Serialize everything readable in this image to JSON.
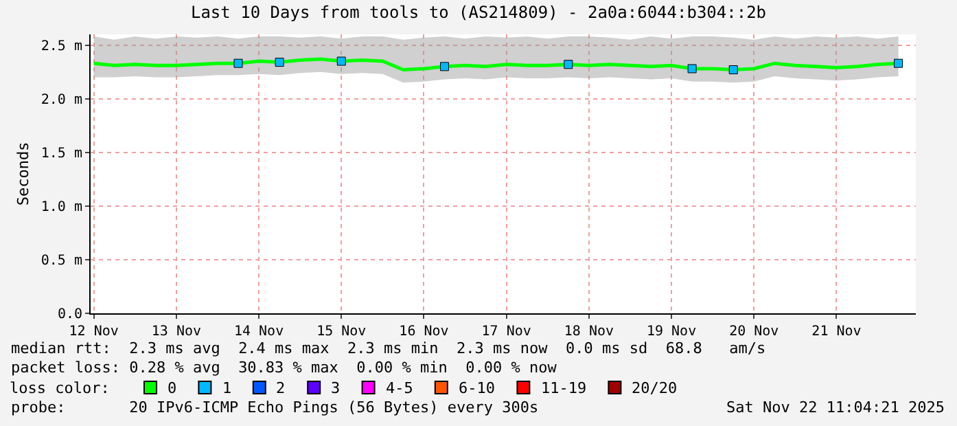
{
  "chart_data": {
    "type": "line",
    "title": "Last 10 Days from tools to (AS214809) - 2a0a:6044:b304::2b",
    "ylabel": "Seconds",
    "legend_title": "loss color:",
    "x": [
      "2025-11-12T12:00",
      "2025-11-12T18:00",
      "2025-11-13T00:00",
      "2025-11-13T06:00",
      "2025-11-13T12:00",
      "2025-11-13T18:00",
      "2025-11-14T00:00",
      "2025-11-14T06:00",
      "2025-11-14T12:00",
      "2025-11-14T18:00",
      "2025-11-15T00:00",
      "2025-11-15T06:00",
      "2025-11-15T12:00",
      "2025-11-15T18:00",
      "2025-11-16T00:00",
      "2025-11-16T06:00",
      "2025-11-16T12:00",
      "2025-11-16T18:00",
      "2025-11-17T00:00",
      "2025-11-17T06:00",
      "2025-11-17T12:00",
      "2025-11-17T18:00",
      "2025-11-18T00:00",
      "2025-11-18T06:00",
      "2025-11-18T12:00",
      "2025-11-18T18:00",
      "2025-11-19T00:00",
      "2025-11-19T06:00",
      "2025-11-19T12:00",
      "2025-11-19T18:00",
      "2025-11-20T00:00",
      "2025-11-20T06:00",
      "2025-11-20T12:00",
      "2025-11-20T18:00",
      "2025-11-21T00:00",
      "2025-11-21T06:00",
      "2025-11-21T12:00",
      "2025-11-21T18:00",
      "2025-11-22T00:00",
      "2025-11-22T06:00"
    ],
    "series": [
      {
        "name": "0",
        "color": "#00ff00",
        "values": [
          2.33,
          2.31,
          2.32,
          2.31,
          2.31,
          2.32,
          2.33,
          2.33,
          2.35,
          2.34,
          2.36,
          2.37,
          2.35,
          2.36,
          2.35,
          2.27,
          2.28,
          2.3,
          2.31,
          2.3,
          2.32,
          2.31,
          2.31,
          2.32,
          2.31,
          2.32,
          2.31,
          2.3,
          2.31,
          2.28,
          2.28,
          2.27,
          2.28,
          2.33,
          2.31,
          2.3,
          2.29,
          2.3,
          2.32,
          2.33
        ],
        "lower": [
          2.2,
          2.2,
          2.21,
          2.2,
          2.2,
          2.21,
          2.22,
          2.22,
          2.23,
          2.22,
          2.24,
          2.25,
          2.23,
          2.24,
          2.23,
          2.15,
          2.16,
          2.18,
          2.19,
          2.18,
          2.2,
          2.19,
          2.19,
          2.2,
          2.19,
          2.2,
          2.19,
          2.18,
          2.19,
          2.16,
          2.16,
          2.15,
          2.16,
          2.21,
          2.19,
          2.18,
          2.17,
          2.18,
          2.2,
          2.21
        ],
        "upper": [
          2.58,
          2.55,
          2.58,
          2.56,
          2.58,
          2.57,
          2.58,
          2.56,
          2.58,
          2.58,
          2.57,
          2.58,
          2.56,
          2.58,
          2.58,
          2.55,
          2.57,
          2.58,
          2.56,
          2.58,
          2.57,
          2.58,
          2.56,
          2.58,
          2.58,
          2.57,
          2.55,
          2.58,
          2.56,
          2.58,
          2.58,
          2.57,
          2.55,
          2.58,
          2.56,
          2.58,
          2.57,
          2.58,
          2.56,
          2.58
        ]
      },
      {
        "name": "1",
        "color": "#00b8ff",
        "type": "scatter",
        "marker": "square",
        "values": [
          null,
          null,
          null,
          null,
          null,
          null,
          null,
          2.33,
          null,
          2.34,
          null,
          null,
          2.35,
          null,
          null,
          null,
          null,
          2.3,
          null,
          null,
          null,
          null,
          null,
          2.32,
          null,
          null,
          null,
          null,
          null,
          2.28,
          null,
          2.27,
          null,
          null,
          null,
          null,
          null,
          null,
          null,
          2.33
        ]
      },
      {
        "name": "2",
        "color": "#0059ff",
        "type": "scatter",
        "values": [
          null,
          null,
          null,
          null,
          null,
          null,
          null,
          null,
          null,
          null,
          null,
          null,
          null,
          null,
          null,
          null,
          null,
          null,
          null,
          null,
          null,
          null,
          null,
          null,
          null,
          null,
          null,
          null,
          null,
          null,
          null,
          null,
          null,
          null,
          null,
          null,
          null,
          null,
          null,
          null
        ]
      },
      {
        "name": "3",
        "color": "#5e00ff",
        "type": "scatter",
        "values": [
          null,
          null,
          null,
          null,
          null,
          null,
          null,
          null,
          null,
          null,
          null,
          null,
          null,
          null,
          null,
          null,
          null,
          null,
          null,
          null,
          null,
          null,
          null,
          null,
          null,
          null,
          null,
          null,
          null,
          null,
          null,
          null,
          null,
          null,
          null,
          null,
          null,
          null,
          null,
          null
        ]
      },
      {
        "name": "4-5",
        "color": "#ff00ff",
        "type": "scatter",
        "values": [
          null,
          null,
          null,
          null,
          null,
          null,
          null,
          null,
          null,
          null,
          null,
          null,
          null,
          null,
          null,
          null,
          null,
          null,
          null,
          null,
          null,
          null,
          null,
          null,
          null,
          null,
          null,
          null,
          null,
          null,
          null,
          null,
          null,
          null,
          null,
          null,
          null,
          null,
          null,
          null
        ]
      },
      {
        "name": "6-10",
        "color": "#ff5500",
        "type": "scatter",
        "values": [
          null,
          null,
          null,
          null,
          null,
          null,
          null,
          null,
          null,
          null,
          null,
          null,
          null,
          null,
          null,
          null,
          null,
          null,
          null,
          null,
          null,
          null,
          null,
          null,
          null,
          null,
          null,
          null,
          null,
          null,
          null,
          null,
          null,
          null,
          null,
          null,
          null,
          null,
          null,
          null
        ]
      },
      {
        "name": "11-19",
        "color": "#ff0000",
        "type": "scatter",
        "values": [
          null,
          null,
          null,
          null,
          null,
          null,
          null,
          null,
          null,
          null,
          null,
          null,
          null,
          null,
          null,
          null,
          null,
          null,
          null,
          null,
          null,
          null,
          null,
          null,
          null,
          null,
          null,
          null,
          null,
          null,
          null,
          null,
          null,
          null,
          null,
          null,
          null,
          null,
          null,
          null
        ]
      },
      {
        "name": "20/20",
        "color": "#a10000",
        "type": "scatter",
        "values": [
          null,
          null,
          null,
          null,
          null,
          null,
          null,
          null,
          null,
          null,
          null,
          null,
          null,
          null,
          null,
          null,
          null,
          null,
          null,
          null,
          null,
          null,
          null,
          null,
          null,
          null,
          null,
          null,
          null,
          null,
          null,
          null,
          null,
          null,
          null,
          null,
          null,
          null,
          null,
          null
        ]
      }
    ],
    "xlim": [
      "2025-11-12T11:04",
      "2025-11-22T11:04"
    ],
    "xticks": [
      {
        "value": "2025-11-12T12:00",
        "label": "12 Nov"
      },
      {
        "value": "2025-11-13T12:00",
        "label": "13 Nov"
      },
      {
        "value": "2025-11-14T12:00",
        "label": "14 Nov"
      },
      {
        "value": "2025-11-15T12:00",
        "label": "15 Nov"
      },
      {
        "value": "2025-11-16T12:00",
        "label": "16 Nov"
      },
      {
        "value": "2025-11-17T12:00",
        "label": "17 Nov"
      },
      {
        "value": "2025-11-18T12:00",
        "label": "18 Nov"
      },
      {
        "value": "2025-11-19T12:00",
        "label": "19 Nov"
      },
      {
        "value": "2025-11-20T12:00",
        "label": "20 Nov"
      },
      {
        "value": "2025-11-21T12:00",
        "label": "21 Nov"
      }
    ],
    "ylim": [
      0,
      2.6
    ],
    "yticks": [
      {
        "value": 0,
        "label": "0.0"
      },
      {
        "value": 0.5,
        "label": "0.5 m"
      },
      {
        "value": 1,
        "label": "1.0 m"
      },
      {
        "value": 1.5,
        "label": "1.5 m"
      },
      {
        "value": 2,
        "label": "2.0 m"
      },
      {
        "value": 2.5,
        "label": "2.5 m"
      }
    ],
    "grid": true,
    "legend": "bottom",
    "annotations": [
      "median rtt:  2.3 ms avg  2.4 ms max  2.3 ms min  2.3 ms now  0.0 ms sd  68.8   am/s",
      "packet loss: 0.28 % avg  30.83 % max  0.00 % min  0.00 % now",
      "probe:       20 IPv6-ICMP Echo Pings (56 Bytes) every 300s",
      "Sat Nov 22 11:04:21 2025"
    ]
  }
}
